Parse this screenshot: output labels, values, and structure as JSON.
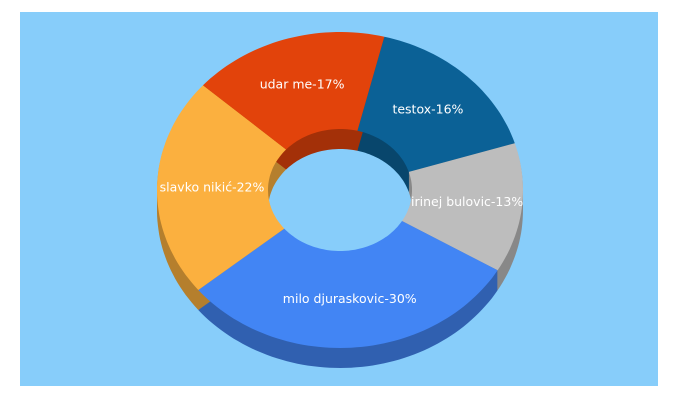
{
  "chart_data": {
    "type": "donut3d",
    "values": [
      16,
      13,
      30,
      22,
      17
    ],
    "value_labels": [
      "testox-16%",
      "irinej bulovic-13%",
      "milo djuraskovic-30%",
      "slavko nikić-22%",
      "udar me-17%"
    ],
    "colors": [
      "#0b6196",
      "#bdbdbd",
      "#4285f4",
      "#fbb03f",
      "#e2430b"
    ]
  }
}
